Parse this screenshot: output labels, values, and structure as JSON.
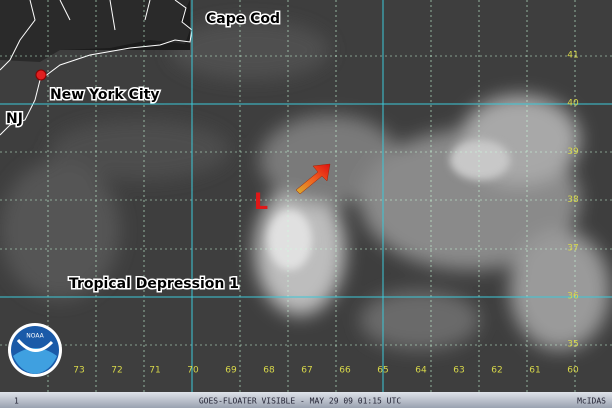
{
  "places": {
    "cape_cod": "Cape Cod",
    "nyc": "New York City",
    "nj": "NJ",
    "low": "L",
    "storm": "Tropical Depression 1"
  },
  "latitudes": [
    41,
    40,
    39,
    38,
    37,
    36,
    35
  ],
  "longitudes": [
    73,
    72,
    71,
    70,
    69,
    68,
    67,
    66,
    65,
    64,
    63,
    62,
    61,
    60
  ],
  "logo": "NOAA",
  "footer": {
    "frame": "1",
    "caption": "GOES-FLOATER VISIBLE - MAY 29 09 01:15 UTC",
    "software": "McIDAS"
  }
}
